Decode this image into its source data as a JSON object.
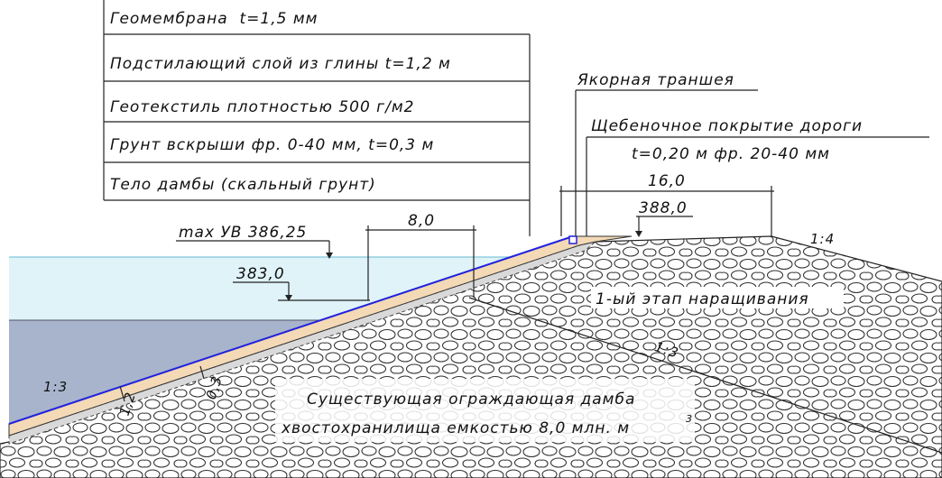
{
  "legend": {
    "layers": [
      "Геомембрана  t=1,5 мм",
      "Подстилающий слой из глины t=1,2 м",
      "Геотекстиль плотностью 500 г/м2",
      "Грунт вскрыши фр. 0-40 мм, t=0,3 м",
      "Тело дамбы (скальный грунт)"
    ]
  },
  "labels": {
    "anchor_trench": "Якорная траншея",
    "road_cover": "Щебеночное покрытие дороги",
    "road_cover_spec": "t=0,20 м фр. 20-40 мм",
    "crest_width": "16,0",
    "crest_level": "388,0",
    "anchor_width": "8,0",
    "max_water_level": "max УВ 386,25",
    "level_383": "383,0",
    "stage_1": "1-ый этап наращивания",
    "slope_right": "1:4",
    "slope_existing": "1:3",
    "slope_left": "1:3",
    "clay_thickness": "1,2",
    "soil_thickness": "0,3",
    "existing_dam_line1": "Существующая ограждающая дамба",
    "existing_dam_line2": "хвостохранилища емкостью 8,0 млн. м",
    "existing_dam_sup": "3"
  }
}
